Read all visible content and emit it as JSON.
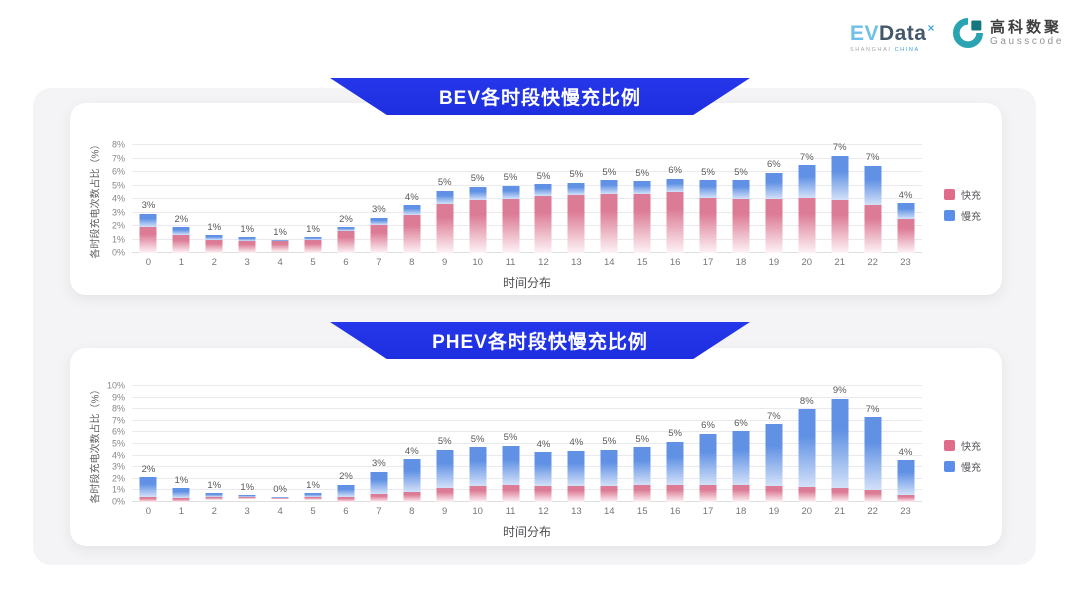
{
  "logo": {
    "evdata_ev": "EV",
    "evdata_data": "Data",
    "evdata_mark": "×",
    "evdata_sub_1": "SHANGHAI",
    "evdata_sub_2": "CHINA",
    "gausscode_cn": "高科数聚",
    "gausscode_en": "Gausscode"
  },
  "colors": {
    "banner_blue": "#1d2fe0",
    "fast_pink": "#e06c8b",
    "slow_blue": "#5a8ee8",
    "pink_grad_top": "#dc7b95",
    "pink_grad_bottom": "#fdf3f6",
    "blue_grad_top": "#6091e4",
    "blue_grad_bottom": "#d3e1f8"
  },
  "chart_data": [
    {
      "type": "bar",
      "stacked": true,
      "title": "BEV各时段快慢充比例",
      "xlabel": "时间分布",
      "ylabel": "各时段充电次数占比（%）",
      "ylim": [
        0,
        8
      ],
      "ytick_step": 1,
      "grid": true,
      "legend_position": "right",
      "categories": [
        "0",
        "1",
        "2",
        "3",
        "4",
        "5",
        "6",
        "7",
        "8",
        "9",
        "10",
        "11",
        "12",
        "13",
        "14",
        "15",
        "16",
        "17",
        "18",
        "19",
        "20",
        "21",
        "22",
        "23"
      ],
      "series": [
        {
          "name": "快充",
          "values": [
            1.9,
            1.3,
            1.0,
            0.9,
            0.85,
            1.0,
            1.6,
            2.1,
            2.8,
            3.6,
            3.9,
            4.0,
            4.2,
            4.3,
            4.4,
            4.4,
            4.5,
            4.05,
            4.0,
            4.0,
            4.05,
            3.9,
            3.55,
            2.5
          ]
        },
        {
          "name": "慢充",
          "values": [
            1.0,
            0.6,
            0.3,
            0.25,
            0.1,
            0.15,
            0.3,
            0.5,
            0.75,
            1.0,
            1.0,
            1.0,
            0.9,
            0.9,
            1.0,
            0.9,
            1.0,
            1.35,
            1.4,
            1.95,
            2.45,
            3.3,
            2.9,
            1.2
          ]
        }
      ],
      "total_labels": [
        "3%",
        "2%",
        "1%",
        "1%",
        "1%",
        "1%",
        "2%",
        "3%",
        "4%",
        "5%",
        "5%",
        "5%",
        "5%",
        "5%",
        "5%",
        "5%",
        "6%",
        "5%",
        "5%",
        "6%",
        "7%",
        "7%",
        "7%",
        "4%"
      ]
    },
    {
      "type": "bar",
      "stacked": true,
      "title": "PHEV各时段快慢充比例",
      "xlabel": "时间分布",
      "ylabel": "各时段充电次数占比（%）",
      "ylim": [
        0,
        10
      ],
      "ytick_step": 1,
      "grid": true,
      "legend_position": "right",
      "categories": [
        "0",
        "1",
        "2",
        "3",
        "4",
        "5",
        "6",
        "7",
        "8",
        "9",
        "10",
        "11",
        "12",
        "13",
        "14",
        "15",
        "16",
        "17",
        "18",
        "19",
        "20",
        "21",
        "22",
        "23"
      ],
      "series": [
        {
          "name": "快充",
          "values": [
            0.45,
            0.35,
            0.3,
            0.26,
            0.2,
            0.3,
            0.46,
            0.66,
            0.86,
            1.2,
            1.34,
            1.49,
            1.34,
            1.34,
            1.4,
            1.5,
            1.49,
            1.43,
            1.46,
            1.37,
            1.29,
            1.23,
            1.06,
            0.6
          ]
        },
        {
          "name": "慢充",
          "values": [
            1.7,
            0.85,
            0.47,
            0.31,
            0.2,
            0.44,
            1.04,
            1.94,
            2.84,
            3.3,
            3.36,
            3.37,
            2.96,
            3.06,
            3.1,
            3.24,
            3.71,
            4.47,
            4.64,
            5.33,
            6.71,
            7.67,
            6.24,
            3.0
          ]
        }
      ],
      "total_labels": [
        "2%",
        "1%",
        "1%",
        "1%",
        "0%",
        "1%",
        "2%",
        "3%",
        "4%",
        "5%",
        "5%",
        "5%",
        "4%",
        "4%",
        "5%",
        "5%",
        "5%",
        "6%",
        "6%",
        "7%",
        "8%",
        "9%",
        "7%",
        "4%"
      ]
    }
  ]
}
